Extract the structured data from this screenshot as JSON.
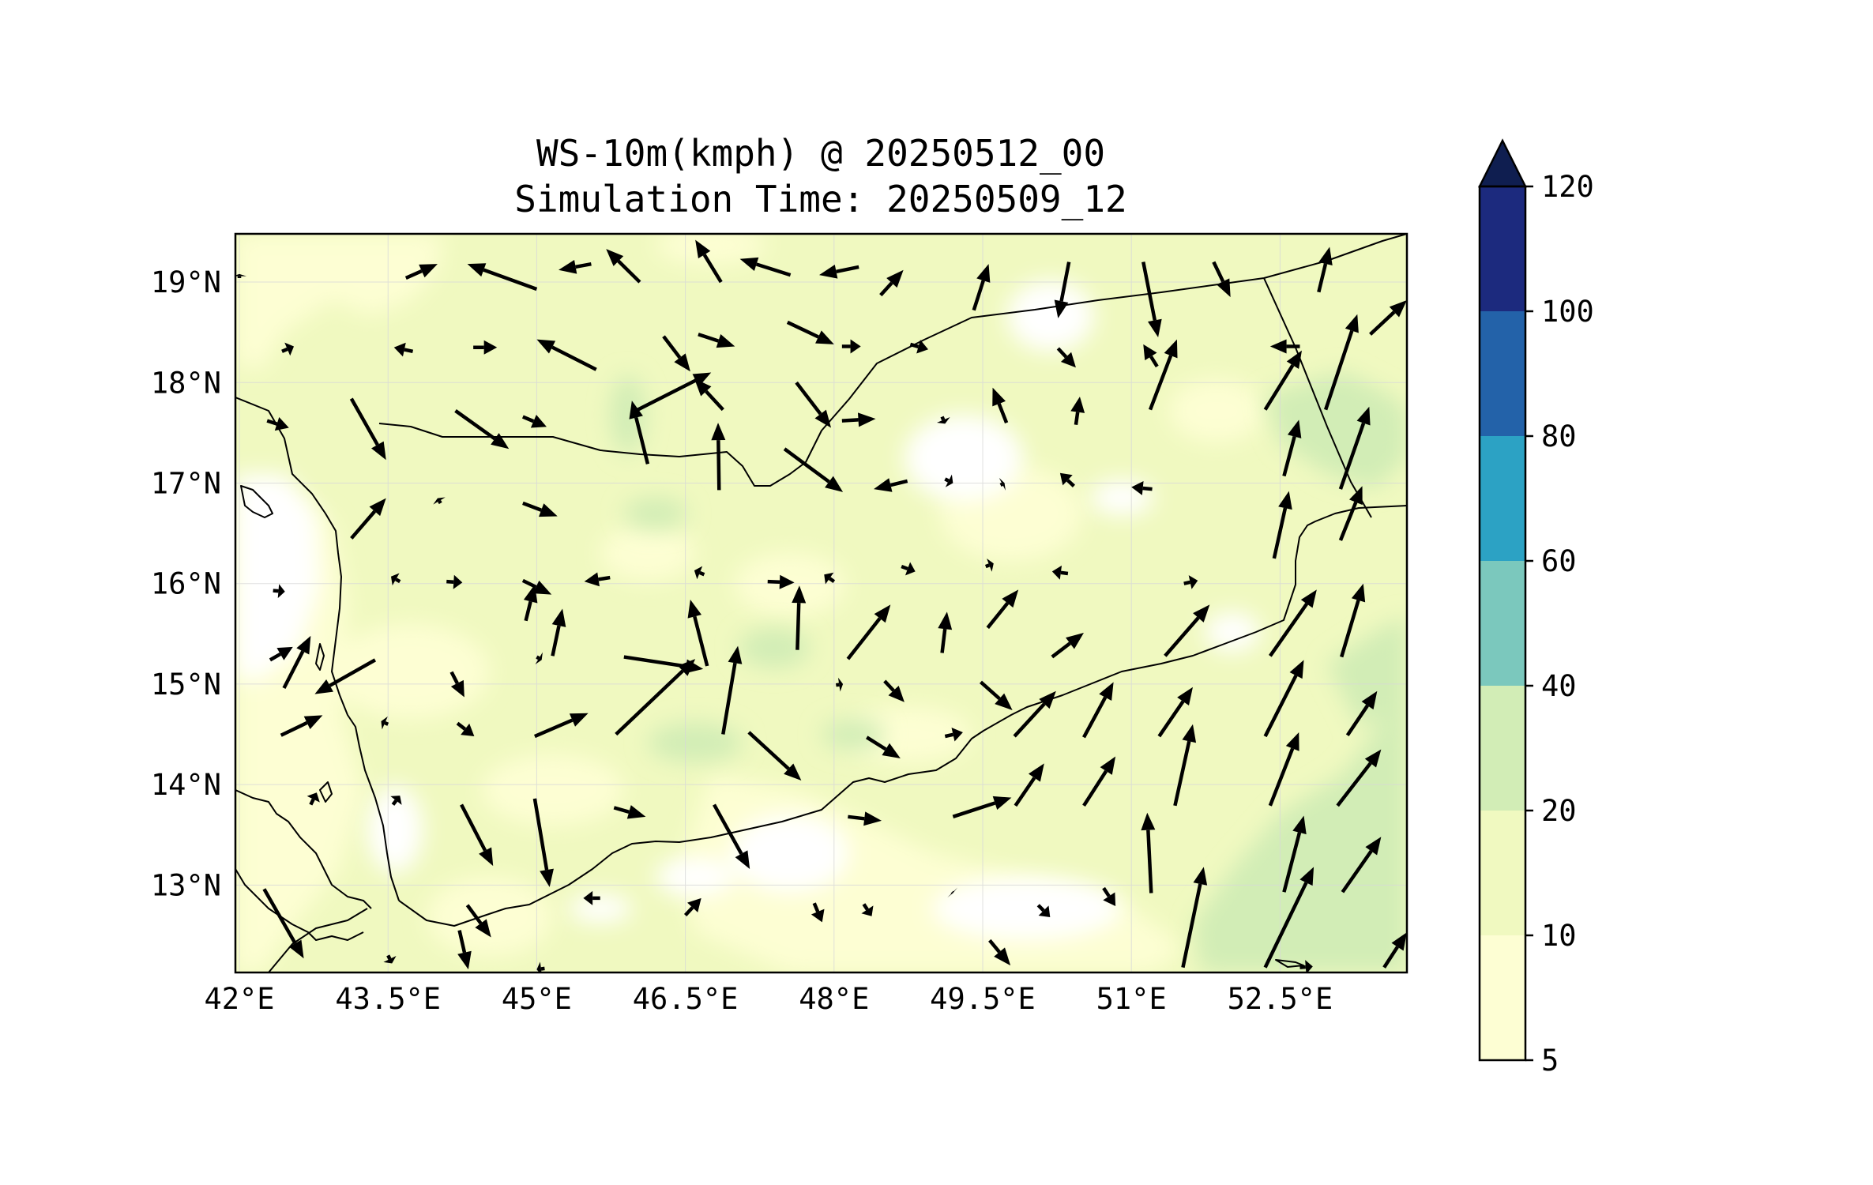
{
  "title": {
    "line1": "WS-10m(kmph) @ 20250512_00",
    "line2": "Simulation Time: 20250509_12"
  },
  "map": {
    "extent": {
      "lon": [
        41.96,
        53.78
      ],
      "lat": [
        12.13,
        19.48
      ]
    },
    "x_ticks": [
      {
        "value": 42.0,
        "label": "42°E"
      },
      {
        "value": 43.5,
        "label": "43.5°E"
      },
      {
        "value": 45.0,
        "label": "45°E"
      },
      {
        "value": 46.5,
        "label": "46.5°E"
      },
      {
        "value": 48.0,
        "label": "48°E"
      },
      {
        "value": 49.5,
        "label": "49.5°E"
      },
      {
        "value": 51.0,
        "label": "51°E"
      },
      {
        "value": 52.5,
        "label": "52.5°E"
      }
    ],
    "y_ticks": [
      {
        "value": 19.0,
        "label": "19°N"
      },
      {
        "value": 18.0,
        "label": "18°N"
      },
      {
        "value": 17.0,
        "label": "17°N"
      },
      {
        "value": 16.0,
        "label": "16°N"
      },
      {
        "value": 15.0,
        "label": "15°N"
      },
      {
        "value": 14.0,
        "label": "14°N"
      },
      {
        "value": 13.0,
        "label": "13°N"
      }
    ],
    "grid": true,
    "colors": {
      "lt5": "#ffffff",
      "5_10": "#fdfed3",
      "10_20": "#f0f9c0",
      "20_40": "#d2edb6",
      "border": "#000000"
    }
  },
  "colorbar": {
    "extend": "max",
    "levels": [
      {
        "from": 5,
        "to": 10,
        "color": "#fdfed3"
      },
      {
        "from": 10,
        "to": 20,
        "color": "#f0f9c0"
      },
      {
        "from": 20,
        "to": 40,
        "color": "#d2edb6"
      },
      {
        "from": 40,
        "to": 60,
        "color": "#7bc8bd"
      },
      {
        "from": 60,
        "to": 80,
        "color": "#2ca2c4"
      },
      {
        "from": 80,
        "to": 100,
        "color": "#2362a9"
      },
      {
        "from": 100,
        "to": 120,
        "color": "#1c2a7e"
      }
    ],
    "over_color": "#0f1e50",
    "tick_labels": [
      "5",
      "10",
      "20",
      "40",
      "60",
      "80",
      "100",
      "120"
    ]
  },
  "wind_vectors_lonlat": [
    [
      43.68,
      19.04,
      44.0,
      19.18
    ],
    [
      45.0,
      18.93,
      44.3,
      19.18
    ],
    [
      45.55,
      19.18,
      45.22,
      19.12
    ],
    [
      46.04,
      19.0,
      45.7,
      19.33
    ],
    [
      46.86,
      19.0,
      46.6,
      19.42
    ],
    [
      47.56,
      19.07,
      47.05,
      19.23
    ],
    [
      48.25,
      19.15,
      47.85,
      19.07
    ],
    [
      48.47,
      18.87,
      48.7,
      19.12
    ],
    [
      49.41,
      18.72,
      49.56,
      19.18
    ],
    [
      50.37,
      19.2,
      50.26,
      18.64
    ],
    [
      51.12,
      19.2,
      51.27,
      18.45
    ],
    [
      51.83,
      19.2,
      52.0,
      18.85
    ],
    [
      52.89,
      18.9,
      53.0,
      19.35
    ],
    [
      42.43,
      18.31,
      42.55,
      18.36
    ],
    [
      43.75,
      18.31,
      43.56,
      18.35
    ],
    [
      44.36,
      18.35,
      44.6,
      18.35
    ],
    [
      45.6,
      18.13,
      45.0,
      18.43
    ],
    [
      46.28,
      18.46,
      46.55,
      18.11
    ],
    [
      46.63,
      18.48,
      47.0,
      18.36
    ],
    [
      47.53,
      18.6,
      48.0,
      18.38
    ],
    [
      48.08,
      18.36,
      48.27,
      18.36
    ],
    [
      48.77,
      18.38,
      48.95,
      18.33
    ],
    [
      50.26,
      18.34,
      50.44,
      18.15
    ],
    [
      51.26,
      18.16,
      51.12,
      18.38
    ],
    [
      51.19,
      17.73,
      51.46,
      18.43
    ],
    [
      52.35,
      17.73,
      52.72,
      18.32
    ],
    [
      52.7,
      18.36,
      52.4,
      18.36
    ],
    [
      52.96,
      17.73,
      53.28,
      18.68
    ],
    [
      53.41,
      18.48,
      53.78,
      18.82
    ],
    [
      42.28,
      17.62,
      42.5,
      17.55
    ],
    [
      46.02,
      17.73,
      46.76,
      18.1
    ],
    [
      46.88,
      17.73,
      46.59,
      18.04
    ],
    [
      47.62,
      18.0,
      47.97,
      17.55
    ],
    [
      48.08,
      17.62,
      48.42,
      17.64
    ],
    [
      49.09,
      17.66,
      49.12,
      17.59
    ],
    [
      49.74,
      17.6,
      49.6,
      17.95
    ],
    [
      50.44,
      17.58,
      50.48,
      17.86
    ],
    [
      43.13,
      17.84,
      43.48,
      17.23
    ],
    [
      44.18,
      17.72,
      44.72,
      17.34
    ],
    [
      44.86,
      17.66,
      45.1,
      17.56
    ],
    [
      46.12,
      17.19,
      45.96,
      17.82
    ],
    [
      46.84,
      16.93,
      46.83,
      17.6
    ],
    [
      47.5,
      17.34,
      48.09,
      16.91
    ],
    [
      48.74,
      17.02,
      48.4,
      16.94
    ],
    [
      49.12,
      17.04,
      49.2,
      17.0
    ],
    [
      49.68,
      16.98,
      49.72,
      17.0
    ],
    [
      50.42,
      16.97,
      50.28,
      17.1
    ],
    [
      51.21,
      16.94,
      51.0,
      16.96
    ],
    [
      52.54,
      17.07,
      52.69,
      17.63
    ],
    [
      53.11,
      16.94,
      53.4,
      17.76
    ],
    [
      44.03,
      16.8,
      44.0,
      16.85
    ],
    [
      44.86,
      16.8,
      45.21,
      16.67
    ],
    [
      43.13,
      16.45,
      43.48,
      16.85
    ],
    [
      44.09,
      16.02,
      44.25,
      16.01
    ],
    [
      44.86,
      16.03,
      45.15,
      15.89
    ],
    [
      45.74,
      16.06,
      45.48,
      16.02
    ],
    [
      46.69,
      16.09,
      46.59,
      16.13
    ],
    [
      47.33,
      16.02,
      47.6,
      16.01
    ],
    [
      48.0,
      16.02,
      47.9,
      16.09
    ],
    [
      48.68,
      16.17,
      48.82,
      16.12
    ],
    [
      49.53,
      16.17,
      49.61,
      16.2
    ],
    [
      50.36,
      16.1,
      50.2,
      16.12
    ],
    [
      51.53,
      16.0,
      51.67,
      16.03
    ],
    [
      52.44,
      16.25,
      52.59,
      16.92
    ],
    [
      53.11,
      16.43,
      53.33,
      16.97
    ],
    [
      42.34,
      15.93,
      42.46,
      15.92
    ],
    [
      43.62,
      16.02,
      43.53,
      16.07
    ],
    [
      44.89,
      15.63,
      44.98,
      15.99
    ],
    [
      45.16,
      15.28,
      45.26,
      15.75
    ],
    [
      46.72,
      15.18,
      46.55,
      15.84
    ],
    [
      47.63,
      15.34,
      47.65,
      15.98
    ],
    [
      48.14,
      15.25,
      48.57,
      15.79
    ],
    [
      49.09,
      15.31,
      49.14,
      15.72
    ],
    [
      49.55,
      15.56,
      49.86,
      15.94
    ],
    [
      50.2,
      15.27,
      50.52,
      15.51
    ],
    [
      51.34,
      15.28,
      51.79,
      15.79
    ],
    [
      52.4,
      15.28,
      52.87,
      15.94
    ],
    [
      53.12,
      15.27,
      53.34,
      16.0
    ],
    [
      42.31,
      15.24,
      42.54,
      15.37
    ],
    [
      42.45,
      14.96,
      42.72,
      15.48
    ],
    [
      43.37,
      15.24,
      42.76,
      14.9
    ],
    [
      44.14,
      15.12,
      44.27,
      14.87
    ],
    [
      45.0,
      15.27,
      45.05,
      15.24
    ],
    [
      45.88,
      15.27,
      46.68,
      15.15
    ],
    [
      46.88,
      14.5,
      47.03,
      15.38
    ],
    [
      48.02,
      14.99,
      48.09,
      15.0
    ],
    [
      48.51,
      15.03,
      48.71,
      14.82
    ],
    [
      49.48,
      15.02,
      49.8,
      14.74
    ],
    [
      49.82,
      14.48,
      50.24,
      14.93
    ],
    [
      50.52,
      14.47,
      50.82,
      15.02
    ],
    [
      51.28,
      14.48,
      51.62,
      14.97
    ],
    [
      52.35,
      14.48,
      52.74,
      15.24
    ],
    [
      53.18,
      14.49,
      53.48,
      14.93
    ],
    [
      42.42,
      14.49,
      42.84,
      14.69
    ],
    [
      43.5,
      14.6,
      43.43,
      14.63
    ],
    [
      44.2,
      14.61,
      44.37,
      14.48
    ],
    [
      44.98,
      14.48,
      45.52,
      14.71
    ],
    [
      45.8,
      14.5,
      46.6,
      15.25
    ],
    [
      47.14,
      14.52,
      47.67,
      14.04
    ],
    [
      48.33,
      14.47,
      48.67,
      14.26
    ],
    [
      49.12,
      14.48,
      49.3,
      14.52
    ],
    [
      49.83,
      13.79,
      50.12,
      14.21
    ],
    [
      50.52,
      13.79,
      50.84,
      14.28
    ],
    [
      51.44,
      13.79,
      51.62,
      14.6
    ],
    [
      52.4,
      13.79,
      52.69,
      14.52
    ],
    [
      53.08,
      13.79,
      53.52,
      14.35
    ],
    [
      42.72,
      13.8,
      42.78,
      13.92
    ],
    [
      43.55,
      13.8,
      43.62,
      13.89
    ],
    [
      44.24,
      13.8,
      44.56,
      13.19
    ],
    [
      44.98,
      13.86,
      45.13,
      12.98
    ],
    [
      45.78,
      13.77,
      46.1,
      13.68
    ],
    [
      46.79,
      13.8,
      47.15,
      13.16
    ],
    [
      48.14,
      13.68,
      48.48,
      13.64
    ],
    [
      49.2,
      13.68,
      49.79,
      13.87
    ],
    [
      51.2,
      12.92,
      51.16,
      13.72
    ],
    [
      52.54,
      12.93,
      52.74,
      13.69
    ],
    [
      53.13,
      12.93,
      53.52,
      13.48
    ],
    [
      44.3,
      12.8,
      44.54,
      12.48
    ],
    [
      45.64,
      12.87,
      45.47,
      12.87
    ],
    [
      46.5,
      12.7,
      46.66,
      12.87
    ],
    [
      47.8,
      12.82,
      47.88,
      12.63
    ],
    [
      48.3,
      12.81,
      48.38,
      12.69
    ],
    [
      49.19,
      12.93,
      49.2,
      12.92
    ],
    [
      50.06,
      12.8,
      50.18,
      12.68
    ],
    [
      50.72,
      12.97,
      50.84,
      12.79
    ],
    [
      42.25,
      12.96,
      42.65,
      12.27
    ],
    [
      43.5,
      12.3,
      43.54,
      12.22
    ],
    [
      44.22,
      12.55,
      44.31,
      12.16
    ],
    [
      49.57,
      12.45,
      49.78,
      12.2
    ],
    [
      51.52,
      12.18,
      51.73,
      13.18
    ],
    [
      52.35,
      12.18,
      52.84,
      13.18
    ],
    [
      53.55,
      12.18,
      53.78,
      12.53
    ],
    [
      52.7,
      12.18,
      52.83,
      12.19
    ],
    [
      45.08,
      12.17,
      45.0,
      12.16
    ],
    [
      42.0,
      19.04,
      42.0,
      19.08
    ]
  ]
}
